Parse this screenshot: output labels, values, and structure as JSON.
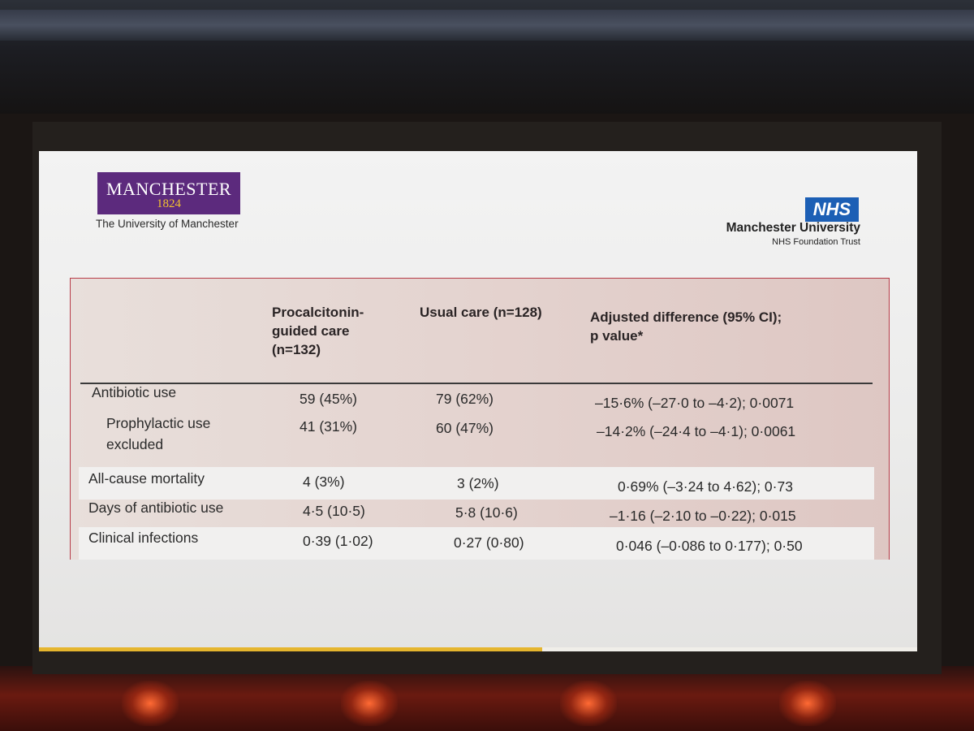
{
  "slide": {
    "logo_left": {
      "brand_word": "MANCHESTER",
      "year": "1824",
      "name": "The University of Manchester",
      "brand_color": "#5c2a7d"
    },
    "logo_right": {
      "badge": "NHS",
      "trust": "Manchester University",
      "subtitle": "NHS Foundation Trust",
      "badge_color": "#1c5fb5"
    },
    "table": {
      "headers": {
        "col1": [
          "Procalcitonin-",
          "guided care",
          "(n=132)"
        ],
        "col2": [
          "Usual care (n=128)"
        ],
        "col3": [
          "Adjusted difference (95% CI);",
          "p value*"
        ]
      },
      "rows": [
        {
          "label": [
            "Antibiotic use"
          ],
          "pct": "59 (45%)",
          "usual": "79 (62%)",
          "diff": "–15·6% (–27·0 to –4·2); 0·0071",
          "indent": false
        },
        {
          "label": [
            "Prophylactic use",
            "excluded"
          ],
          "pct": "41 (31%)",
          "usual": "60 (47%)",
          "diff": "–14·2% (–24·4 to –4·1); 0·0061",
          "indent": true
        },
        {
          "label": [
            "All-cause mortality"
          ],
          "pct": "4 (3%)",
          "usual": "3 (2%)",
          "diff": "0·69% (–3·24 to 4·62); 0·73",
          "indent": false
        },
        {
          "label": [
            "Days of antibiotic use"
          ],
          "pct": "4·5 (10·5)",
          "usual": "5·8 (10·6)",
          "diff": "–1·16 (–2·10 to –0·22); 0·015",
          "indent": false
        },
        {
          "label": [
            "Clinical infections"
          ],
          "pct": "0·39 (1·02)",
          "usual": "0·27 (0·80)",
          "diff": "0·046 (–0·086 to 0·177); 0·50",
          "indent": false
        }
      ]
    }
  }
}
